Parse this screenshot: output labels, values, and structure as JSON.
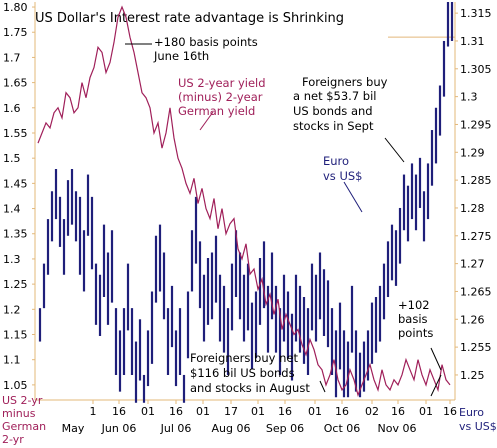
{
  "chart_data": {
    "type": "line",
    "title": "US Dollar's Interest rate advantage is Shrinking",
    "left_axis": {
      "label": "US 2-yr minus German 2-yr",
      "ticks": [
        "1.80",
        "1.75",
        "1.7",
        "1.65",
        "1.6",
        "1.55",
        "1.5",
        "1.45",
        "1.4",
        "1.35",
        "1.3",
        "1.25",
        "1.2",
        "1.15",
        "1.1",
        "1.05"
      ],
      "range": [
        1.02,
        1.81
      ]
    },
    "right_axis": {
      "label": "Euro vs US$",
      "ticks": [
        "1.315",
        "1.31",
        "1.305",
        "1.3",
        "1.295",
        "1.29",
        "1.285",
        "1.28",
        "1.275",
        "1.27",
        "1.265",
        "1.26",
        "1.255",
        "1.25"
      ],
      "range": [
        1.2455,
        1.317
      ]
    },
    "x_tick_labels": [
      "1",
      "16",
      "01",
      "16",
      "01",
      "17",
      "01",
      "16",
      "01",
      "16",
      "02",
      "16",
      "01",
      "16"
    ],
    "x_month_labels": [
      "May",
      "Jun 06",
      "Jul 06",
      "Aug 06",
      "Sep 06",
      "Oct 06",
      "Nov 06"
    ],
    "series": [
      {
        "name": "US 2-year yield (minus) 2-year German yield",
        "axis": "left",
        "color": "#a0205a",
        "x": [
          0,
          4,
          8,
          12,
          16,
          20,
          24,
          28,
          32,
          36,
          40,
          44,
          48,
          52,
          56,
          60,
          64,
          68,
          72,
          76,
          80,
          84,
          88,
          92,
          96,
          100,
          104,
          108,
          112,
          116,
          120,
          124,
          128,
          132,
          136,
          140,
          144,
          148,
          152,
          156,
          160,
          164,
          168,
          172,
          176,
          180,
          184,
          188,
          192,
          196,
          200,
          204,
          208,
          212,
          216,
          220,
          224,
          228,
          232,
          236,
          240,
          244,
          248,
          252,
          256,
          260,
          264,
          268,
          272,
          276,
          280,
          284,
          288,
          292,
          296,
          300,
          304,
          308,
          312,
          316,
          320,
          324,
          328,
          332,
          336,
          340,
          344,
          348,
          352,
          356,
          360,
          364,
          368,
          372,
          376,
          380,
          384,
          388,
          392,
          396,
          400,
          404,
          408,
          412
        ],
        "values": [
          1.53,
          1.55,
          1.57,
          1.56,
          1.59,
          1.6,
          1.58,
          1.63,
          1.62,
          1.59,
          1.6,
          1.65,
          1.62,
          1.66,
          1.68,
          1.72,
          1.71,
          1.67,
          1.69,
          1.73,
          1.78,
          1.8,
          1.78,
          1.74,
          1.71,
          1.67,
          1.63,
          1.62,
          1.6,
          1.55,
          1.57,
          1.52,
          1.55,
          1.6,
          1.54,
          1.5,
          1.48,
          1.45,
          1.43,
          1.46,
          1.41,
          1.44,
          1.4,
          1.38,
          1.42,
          1.36,
          1.4,
          1.35,
          1.37,
          1.38,
          1.32,
          1.3,
          1.33,
          1.27,
          1.28,
          1.24,
          1.26,
          1.21,
          1.23,
          1.19,
          1.22,
          1.16,
          1.19,
          1.17,
          1.15,
          1.16,
          1.13,
          1.11,
          1.14,
          1.12,
          1.09,
          1.08,
          1.05,
          1.07,
          1.1,
          1.06,
          1.04,
          1.05,
          1.08,
          1.06,
          1.03,
          1.05,
          1.07,
          1.09,
          1.06,
          1.04,
          1.08,
          1.05,
          1.04,
          1.06,
          1.05,
          1.07,
          1.1,
          1.08,
          1.06,
          1.1,
          1.07,
          1.05,
          1.08,
          1.06,
          1.04,
          1.09,
          1.06,
          1.05
        ]
      },
      {
        "name": "Euro vs US$",
        "axis": "right",
        "color": "#1f1f7a",
        "type": "high-low bars",
        "x": [
          2,
          6,
          10,
          14,
          18,
          22,
          26,
          30,
          34,
          38,
          42,
          46,
          50,
          54,
          58,
          62,
          66,
          70,
          74,
          78,
          82,
          86,
          90,
          94,
          98,
          102,
          106,
          110,
          114,
          118,
          122,
          126,
          130,
          134,
          138,
          142,
          146,
          150,
          154,
          158,
          162,
          166,
          170,
          174,
          178,
          182,
          186,
          190,
          194,
          198,
          202,
          206,
          210,
          214,
          218,
          222,
          226,
          230,
          234,
          238,
          242,
          246,
          250,
          254,
          258,
          262,
          266,
          270,
          274,
          278,
          282,
          286,
          290,
          294,
          298,
          302,
          306,
          310,
          314,
          318,
          322,
          326,
          330,
          334,
          338,
          342,
          346,
          350,
          354,
          358,
          362,
          366,
          370,
          374,
          378,
          382,
          386,
          390,
          394,
          398,
          402,
          406,
          410,
          414
        ],
        "high": [
          1.262,
          1.27,
          1.278,
          1.283,
          1.287,
          1.282,
          1.278,
          1.285,
          1.287,
          1.283,
          1.282,
          1.276,
          1.286,
          1.282,
          1.27,
          1.268,
          1.277,
          1.272,
          1.276,
          1.262,
          1.258,
          1.262,
          1.27,
          1.262,
          1.256,
          1.26,
          1.25,
          1.258,
          1.265,
          1.275,
          1.277,
          1.272,
          1.262,
          1.266,
          1.258,
          1.262,
          1.25,
          1.265,
          1.276,
          1.282,
          1.274,
          1.268,
          1.271,
          1.272,
          1.275,
          1.268,
          1.266,
          1.262,
          1.27,
          1.276,
          1.272,
          1.268,
          1.27,
          1.263,
          1.265,
          1.271,
          1.274,
          1.266,
          1.272,
          1.266,
          1.262,
          1.268,
          1.265,
          1.261,
          1.268,
          1.266,
          1.264,
          1.262,
          1.27,
          1.268,
          1.272,
          1.269,
          1.267,
          1.262,
          1.258,
          1.263,
          1.258,
          1.256,
          1.266,
          1.258,
          1.254,
          1.256,
          1.258,
          1.263,
          1.264,
          1.266,
          1.27,
          1.274,
          1.277,
          1.276,
          1.28,
          1.286,
          1.284,
          1.288,
          1.286,
          1.289,
          1.283,
          1.288,
          1.294,
          1.298,
          1.302,
          1.31,
          1.317,
          1.317
        ],
        "low": [
          1.256,
          1.262,
          1.268,
          1.274,
          1.278,
          1.273,
          1.268,
          1.275,
          1.277,
          1.274,
          1.268,
          1.265,
          1.275,
          1.269,
          1.259,
          1.257,
          1.264,
          1.259,
          1.263,
          1.25,
          1.247,
          1.25,
          1.258,
          1.25,
          1.245,
          1.249,
          1.245,
          1.248,
          1.252,
          1.263,
          1.265,
          1.26,
          1.25,
          1.255,
          1.248,
          1.25,
          1.245,
          1.253,
          1.265,
          1.27,
          1.262,
          1.256,
          1.259,
          1.26,
          1.263,
          1.256,
          1.254,
          1.25,
          1.258,
          1.264,
          1.26,
          1.256,
          1.258,
          1.251,
          1.253,
          1.259,
          1.262,
          1.254,
          1.26,
          1.254,
          1.25,
          1.256,
          1.253,
          1.249,
          1.256,
          1.254,
          1.252,
          1.25,
          1.258,
          1.256,
          1.26,
          1.257,
          1.255,
          1.25,
          1.246,
          1.251,
          1.246,
          1.246,
          1.254,
          1.247,
          1.246,
          1.247,
          1.249,
          1.252,
          1.254,
          1.256,
          1.26,
          1.264,
          1.267,
          1.266,
          1.27,
          1.276,
          1.274,
          1.278,
          1.276,
          1.28,
          1.274,
          1.278,
          1.284,
          1.288,
          1.293,
          1.3,
          1.309,
          1.31
        ]
      }
    ],
    "annotations": [
      {
        "id": "bp180",
        "lines": [
          "+180 basis points",
          "June 16th"
        ],
        "color": "#000000"
      },
      {
        "id": "series-label",
        "lines": [
          "US 2-year yield",
          "(minus) 2-year",
          "German yield"
        ],
        "color": "#a0205a"
      },
      {
        "id": "sept-flow",
        "lines": [
          "Foreigners buy",
          "a net $53.7 bil",
          "US bonds and",
          "stocks in Sept"
        ],
        "color": "#000000"
      },
      {
        "id": "euro-label",
        "lines": [
          "Euro",
          "vs US$"
        ],
        "color": "#1f1f7a"
      },
      {
        "id": "aug-flow",
        "lines": [
          "Foreigners buy net",
          "$116 bil US bonds",
          "and stocks in August"
        ],
        "color": "#000000"
      },
      {
        "id": "bp102",
        "lines": [
          "+102",
          "basis",
          "points"
        ],
        "color": "#000000"
      }
    ],
    "grid": false,
    "legend": "none"
  }
}
